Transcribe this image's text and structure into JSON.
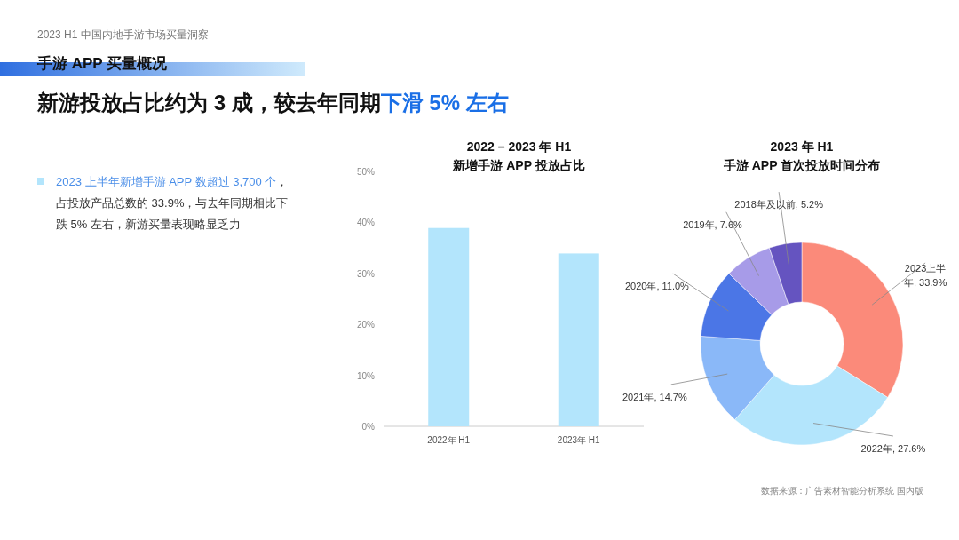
{
  "chart_data": [
    {
      "type": "other",
      "title": "手游 APP 买量概况",
      "subtitle": "2023 H1 中国内地手游市场买量洞察",
      "annotations": [
        "新游投放占比约为 3 成，较去年同期",
        "下滑 5% 左右",
        "2023 上半年新增手游 APP 数超过 3,700 个",
        "，占投放产品总数的 33.9%，与去年同期相比下跌 5% 左右，新游买量表现略显乏力"
      ]
    },
    {
      "type": "bar",
      "title": "2022 – 2023 年 H1\n新增手游 APP 投放占比",
      "categories": [
        "2022年 H1",
        "2023年 H1"
      ],
      "values": [
        38.9,
        33.9
      ],
      "color": "#b3e5fc",
      "ylim": [
        0,
        50
      ],
      "yticks": [
        {
          "value": 0,
          "label": "0%"
        },
        {
          "value": 10,
          "label": "10%"
        },
        {
          "value": 20,
          "label": "20%"
        },
        {
          "value": 30,
          "label": "30%"
        },
        {
          "value": 40,
          "label": "40%"
        },
        {
          "value": 50,
          "label": "50%"
        }
      ],
      "grid": false
    },
    {
      "type": "donut",
      "title": "2023 年 H1\n手游 APP 首次投放时间分布",
      "categories": [
        "2023上半年",
        "2022年",
        "2021年",
        "2020年",
        "2019年",
        "2018年及以前"
      ],
      "values": [
        33.9,
        27.6,
        14.7,
        11.0,
        7.6,
        5.2
      ],
      "value_labels": [
        "33.9%",
        "27.6%",
        "14.7%",
        "11.0%",
        "7.6%",
        "5.2%"
      ],
      "colors": [
        "#fb8a7a",
        "#b3e5fc",
        "#8ab8f8",
        "#4b76e6",
        "#a79be8",
        "#6554c0"
      ],
      "annotations": [
        "数据来源：广告素材智能分析系统 国内版"
      ]
    }
  ]
}
